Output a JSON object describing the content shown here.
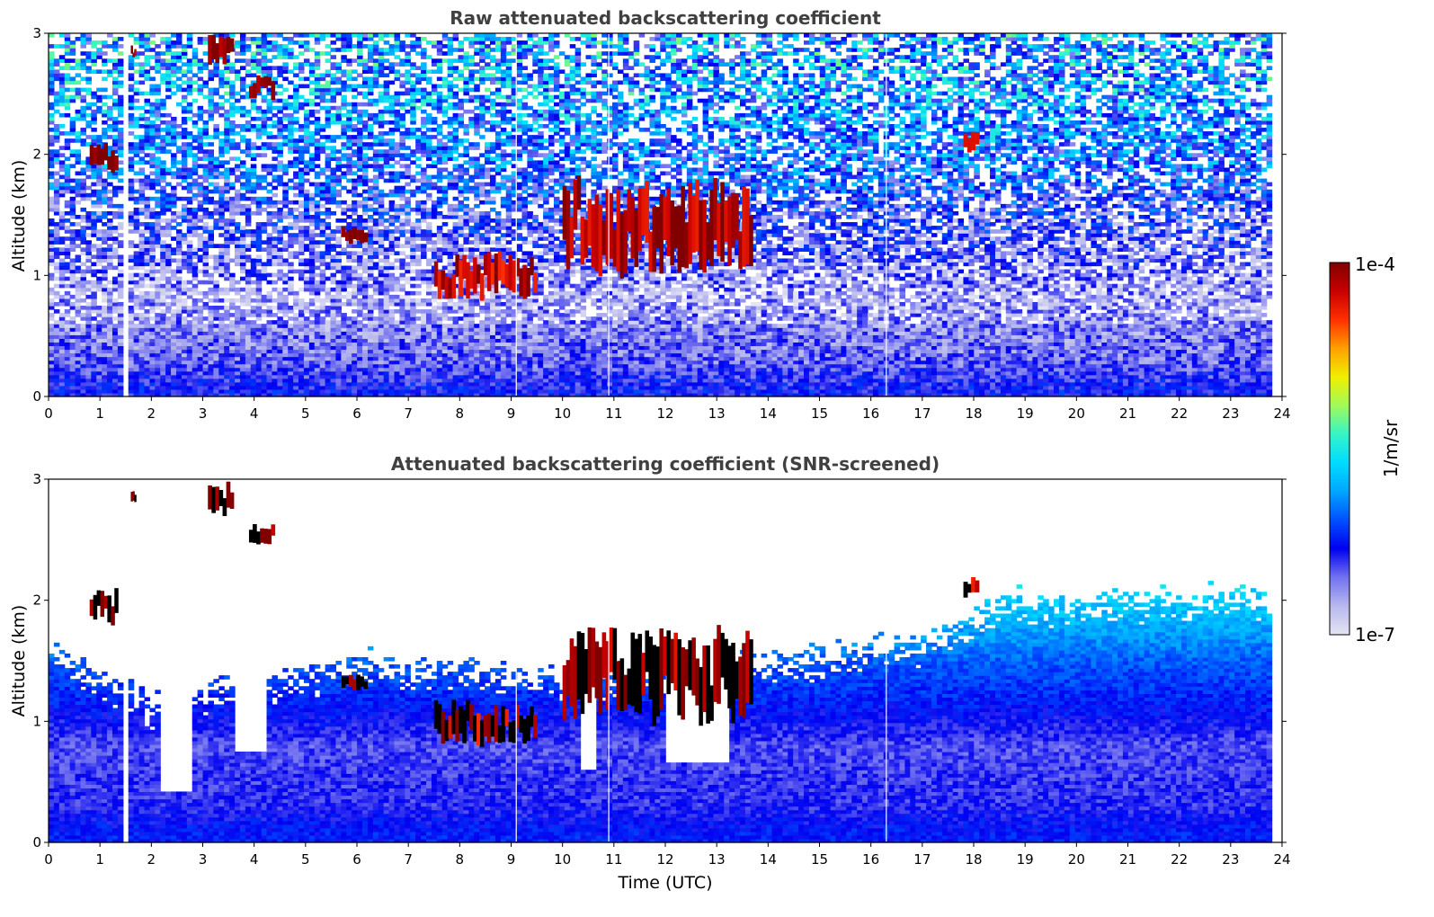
{
  "chart_data": [
    {
      "type": "heatmap",
      "title": "Raw attenuated backscattering coefficient",
      "xlabel": "",
      "ylabel": "Altitude (km)",
      "xlim": [
        0,
        24
      ],
      "ylim": [
        0,
        3
      ],
      "xticks": [
        "0",
        "1",
        "2",
        "3",
        "4",
        "5",
        "6",
        "7",
        "8",
        "9",
        "10",
        "11",
        "12",
        "13",
        "14",
        "15",
        "16",
        "17",
        "18",
        "19",
        "20",
        "21",
        "22",
        "23",
        "24"
      ],
      "yticks": [
        "0",
        "1",
        "2",
        "3"
      ],
      "data_end_x": 23.8,
      "gap_x": [
        1.45,
        1.55
      ],
      "thin_gaps_x": [
        9.1,
        10.9,
        16.3
      ],
      "background_profile": [
        {
          "altitude": 0.05,
          "value": 5e-07
        },
        {
          "altitude": 0.3,
          "value": 3e-07
        },
        {
          "altitude": 0.8,
          "value": 2e-07
        },
        {
          "altitude": 1.5,
          "value": 4e-07
        },
        {
          "altitude": 2.5,
          "value": 1.2e-06
        }
      ],
      "cloud_features": [
        {
          "x": [
            0.8,
            1.35
          ],
          "altitude": [
            1.8,
            2.1
          ],
          "value": 8e-05
        },
        {
          "x": [
            1.6,
            1.7
          ],
          "altitude": [
            2.8,
            2.9
          ],
          "value": 7e-05
        },
        {
          "x": [
            3.1,
            3.6
          ],
          "altitude": [
            2.7,
            3.0
          ],
          "value": 9e-05
        },
        {
          "x": [
            3.9,
            4.4
          ],
          "altitude": [
            2.45,
            2.65
          ],
          "value": 8e-05
        },
        {
          "x": [
            5.7,
            6.2
          ],
          "altitude": [
            1.25,
            1.4
          ],
          "value": 8e-05
        },
        {
          "x": [
            7.5,
            9.5
          ],
          "altitude": [
            0.8,
            1.2
          ],
          "value": 5e-05
        },
        {
          "x": [
            10.0,
            13.7
          ],
          "altitude": [
            1.0,
            1.8
          ],
          "value": 6e-05
        },
        {
          "x": [
            17.8,
            18.1
          ],
          "altitude": [
            2.0,
            2.2
          ],
          "value": 5e-05
        }
      ]
    },
    {
      "type": "heatmap",
      "title": "Attenuated backscattering coefficient (SNR-screened)",
      "xlabel": "Time (UTC)",
      "ylabel": "Altitude (km)",
      "xlim": [
        0,
        24
      ],
      "ylim": [
        0,
        3
      ],
      "xticks": [
        "0",
        "1",
        "2",
        "3",
        "4",
        "5",
        "6",
        "7",
        "8",
        "9",
        "10",
        "11",
        "12",
        "13",
        "14",
        "15",
        "16",
        "17",
        "18",
        "19",
        "20",
        "21",
        "22",
        "23",
        "24"
      ],
      "yticks": [
        "0",
        "1",
        "2",
        "3"
      ],
      "data_end_x": 23.8,
      "gap_x": [
        1.45,
        1.55
      ],
      "thin_gaps_x": [
        9.1,
        10.9,
        16.3
      ],
      "valid_layer_top": [
        {
          "time": 0,
          "altitude": 1.55
        },
        {
          "time": 2,
          "altitude": 1.1
        },
        {
          "time": 6,
          "altitude": 1.45
        },
        {
          "time": 10,
          "altitude": 1.3
        },
        {
          "time": 14,
          "altitude": 1.45
        },
        {
          "time": 17,
          "altitude": 1.6
        },
        {
          "time": 18.5,
          "altitude": 1.95
        },
        {
          "time": 23.8,
          "altitude": 2.0
        }
      ],
      "masked_regions": [
        {
          "time": [
            2.2,
            2.8
          ],
          "altitude_from": 0.42
        },
        {
          "time": [
            3.6,
            4.2
          ],
          "altitude_from": 0.75
        },
        {
          "time": [
            10.3,
            10.7
          ],
          "altitude_from": 0.6
        },
        {
          "time": [
            12.0,
            13.2
          ],
          "altitude_from": 0.65
        }
      ]
    }
  ],
  "colorbar": {
    "label": "1/m/sr",
    "max_label": "1e-4",
    "min_label": "1e-7",
    "scale": "log",
    "colormap": [
      "#e4e4f2",
      "#b8b8ee",
      "#7272f0",
      "#0000f0",
      "#0050ff",
      "#00a6ff",
      "#00dcff",
      "#34f4c8",
      "#a0fa5a",
      "#f0f000",
      "#ffa000",
      "#ff3000",
      "#c80000",
      "#800000"
    ]
  }
}
